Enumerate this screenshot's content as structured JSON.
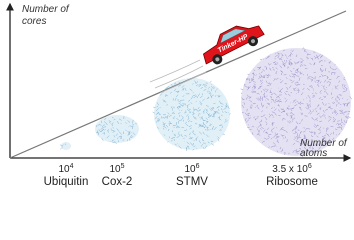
{
  "axes": {
    "y_label": [
      "Number of",
      "cores"
    ],
    "x_label": [
      "Number of",
      "atoms"
    ]
  },
  "vehicle_label": "Tinker-HP",
  "systems": [
    {
      "size": {
        "base": "10",
        "exponent": "4"
      },
      "name": "Ubiquitin"
    },
    {
      "size": {
        "base": "10",
        "exponent": "5"
      },
      "name": "Cox-2"
    },
    {
      "size": {
        "base": "10",
        "exponent": "6"
      },
      "name": "STMV"
    },
    {
      "size": {
        "base": "3.5 x 10",
        "exponent": "6"
      },
      "name": "Ribosome"
    }
  ]
}
